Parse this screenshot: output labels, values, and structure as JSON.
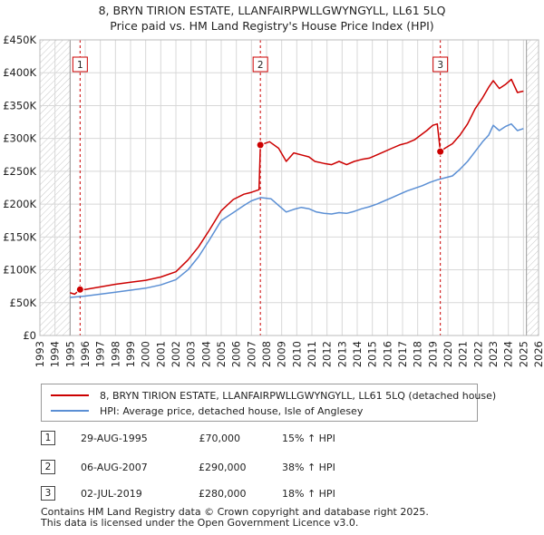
{
  "chart_data": {
    "type": "line",
    "title": "8, BRYN TIRION ESTATE, LLANFAIRPWLLGWYNGYLL, LL61 5LQ",
    "subtitle": "Price paid vs. HM Land Registry's House Price Index (HPI)",
    "x_range": [
      1993,
      2026
    ],
    "ylim": [
      0,
      450000
    ],
    "y_ticks": [
      0,
      50000,
      100000,
      150000,
      200000,
      250000,
      300000,
      350000,
      400000,
      450000
    ],
    "y_tick_labels": [
      "£0",
      "£50K",
      "£100K",
      "£150K",
      "£200K",
      "£250K",
      "£300K",
      "£350K",
      "£400K",
      "£450K"
    ],
    "x_ticks": [
      "1993",
      "1994",
      "1995",
      "1996",
      "1997",
      "1998",
      "1999",
      "2000",
      "2001",
      "2002",
      "2003",
      "2004",
      "2005",
      "2006",
      "2007",
      "2008",
      "2009",
      "2010",
      "2011",
      "2012",
      "2013",
      "2014",
      "2015",
      "2016",
      "2017",
      "2018",
      "2019",
      "2020",
      "2021",
      "2022",
      "2023",
      "2024",
      "2025",
      "2026"
    ],
    "data_start_year": 1995.0,
    "data_end_year": 2025.2,
    "hatched_before": 1995.0,
    "hatched_after": 2025.2,
    "series": [
      {
        "name": "8, BRYN TIRION ESTATE, LLANFAIRPWLLGWYNGYLL, LL61 5LQ (detached house)",
        "color": "#cc0000",
        "points": [
          [
            1995.0,
            65000
          ],
          [
            1995.3,
            63000
          ],
          [
            1995.66,
            70000
          ],
          [
            1996,
            70000
          ],
          [
            1997,
            74000
          ],
          [
            1998,
            78000
          ],
          [
            1999,
            81000
          ],
          [
            2000,
            84000
          ],
          [
            2001,
            89000
          ],
          [
            2002,
            97000
          ],
          [
            2002.8,
            115000
          ],
          [
            2003.5,
            135000
          ],
          [
            2004.2,
            160000
          ],
          [
            2005,
            190000
          ],
          [
            2005.8,
            207000
          ],
          [
            2006.5,
            215000
          ],
          [
            2007.0,
            218000
          ],
          [
            2007.5,
            222000
          ],
          [
            2007.59,
            290000
          ],
          [
            2008.2,
            295000
          ],
          [
            2008.8,
            285000
          ],
          [
            2009.3,
            265000
          ],
          [
            2009.8,
            278000
          ],
          [
            2010.3,
            275000
          ],
          [
            2010.8,
            272000
          ],
          [
            2011.2,
            265000
          ],
          [
            2011.8,
            262000
          ],
          [
            2012.3,
            260000
          ],
          [
            2012.8,
            265000
          ],
          [
            2013.3,
            260000
          ],
          [
            2013.8,
            265000
          ],
          [
            2014.3,
            268000
          ],
          [
            2014.8,
            270000
          ],
          [
            2015.3,
            275000
          ],
          [
            2015.8,
            280000
          ],
          [
            2016.3,
            285000
          ],
          [
            2016.8,
            290000
          ],
          [
            2017.3,
            293000
          ],
          [
            2017.8,
            298000
          ],
          [
            2018.2,
            305000
          ],
          [
            2018.6,
            312000
          ],
          [
            2019.0,
            320000
          ],
          [
            2019.3,
            322000
          ],
          [
            2019.5,
            280000
          ],
          [
            2019.8,
            285000
          ],
          [
            2020.3,
            292000
          ],
          [
            2020.8,
            305000
          ],
          [
            2021.3,
            322000
          ],
          [
            2021.8,
            345000
          ],
          [
            2022.3,
            362000
          ],
          [
            2022.7,
            378000
          ],
          [
            2023.0,
            388000
          ],
          [
            2023.4,
            376000
          ],
          [
            2023.8,
            382000
          ],
          [
            2024.2,
            390000
          ],
          [
            2024.6,
            370000
          ],
          [
            2025.0,
            372000
          ]
        ]
      },
      {
        "name": "HPI: Average price, detached house, Isle of Anglesey",
        "color": "#5b8fd4",
        "points": [
          [
            1995.0,
            58000
          ],
          [
            1996,
            60000
          ],
          [
            1997,
            63000
          ],
          [
            1998,
            66000
          ],
          [
            1999,
            69000
          ],
          [
            2000,
            72000
          ],
          [
            2001,
            77000
          ],
          [
            2002,
            85000
          ],
          [
            2002.8,
            100000
          ],
          [
            2003.5,
            120000
          ],
          [
            2004.2,
            145000
          ],
          [
            2005,
            175000
          ],
          [
            2005.8,
            187000
          ],
          [
            2006.5,
            198000
          ],
          [
            2007.0,
            205000
          ],
          [
            2007.6,
            210000
          ],
          [
            2008.3,
            208000
          ],
          [
            2008.8,
            198000
          ],
          [
            2009.3,
            188000
          ],
          [
            2009.8,
            192000
          ],
          [
            2010.3,
            195000
          ],
          [
            2010.8,
            193000
          ],
          [
            2011.3,
            188000
          ],
          [
            2011.8,
            186000
          ],
          [
            2012.3,
            185000
          ],
          [
            2012.8,
            187000
          ],
          [
            2013.3,
            186000
          ],
          [
            2013.8,
            189000
          ],
          [
            2014.3,
            193000
          ],
          [
            2014.8,
            196000
          ],
          [
            2015.3,
            200000
          ],
          [
            2015.8,
            205000
          ],
          [
            2016.3,
            210000
          ],
          [
            2016.8,
            215000
          ],
          [
            2017.3,
            220000
          ],
          [
            2017.8,
            224000
          ],
          [
            2018.3,
            228000
          ],
          [
            2018.8,
            233000
          ],
          [
            2019.3,
            237000
          ],
          [
            2019.8,
            240000
          ],
          [
            2020.3,
            243000
          ],
          [
            2020.8,
            253000
          ],
          [
            2021.3,
            265000
          ],
          [
            2021.8,
            280000
          ],
          [
            2022.3,
            295000
          ],
          [
            2022.7,
            305000
          ],
          [
            2023.0,
            320000
          ],
          [
            2023.4,
            312000
          ],
          [
            2023.8,
            318000
          ],
          [
            2024.2,
            322000
          ],
          [
            2024.6,
            312000
          ],
          [
            2025.0,
            315000
          ]
        ]
      }
    ],
    "sales": [
      {
        "num": "1",
        "x": 1995.66,
        "price": 70000
      },
      {
        "num": "2",
        "x": 2007.59,
        "price": 290000
      },
      {
        "num": "3",
        "x": 2019.5,
        "price": 280000
      }
    ]
  },
  "legend": {
    "property": "8, BRYN TIRION ESTATE, LLANFAIRPWLLGWYNGYLL, LL61 5LQ (detached house)",
    "hpi": "HPI: Average price, detached house, Isle of Anglesey"
  },
  "transactions": [
    {
      "num": "1",
      "date": "29-AUG-1995",
      "price": "£70,000",
      "hpi": "15% ↑ HPI"
    },
    {
      "num": "2",
      "date": "06-AUG-2007",
      "price": "£290,000",
      "hpi": "38% ↑ HPI"
    },
    {
      "num": "3",
      "date": "02-JUL-2019",
      "price": "£280,000",
      "hpi": "18% ↑ HPI"
    }
  ],
  "footer": {
    "line1": "Contains HM Land Registry data © Crown copyright and database right 2025.",
    "line2": "This data is licensed under the Open Government Licence v3.0."
  }
}
